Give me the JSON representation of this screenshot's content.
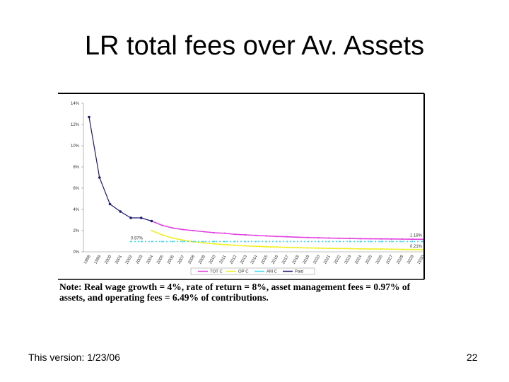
{
  "slide": {
    "title": "LR total fees over Av. Assets",
    "footer_left": "This version: 1/23/06",
    "page_number": "22"
  },
  "chart_data": {
    "type": "line",
    "categories": [
      "1998",
      "1999",
      "2000",
      "2001",
      "2002",
      "2003",
      "2004",
      "2005",
      "2006",
      "2007",
      "2008",
      "2009",
      "2010",
      "2011",
      "2012",
      "2013",
      "2014",
      "2015",
      "2016",
      "2017",
      "2018",
      "2019",
      "2020",
      "2021",
      "2022",
      "2023",
      "2024",
      "2025",
      "2026",
      "2027",
      "2028",
      "2029",
      "2030"
    ],
    "series": [
      {
        "name": "TOT C",
        "color": "#e040e0",
        "values": [
          null,
          null,
          null,
          null,
          null,
          null,
          2.9,
          2.5,
          2.25,
          2.1,
          2.0,
          1.9,
          1.8,
          1.75,
          1.65,
          1.6,
          1.55,
          1.5,
          1.45,
          1.42,
          1.38,
          1.35,
          1.32,
          1.3,
          1.28,
          1.26,
          1.24,
          1.23,
          1.22,
          1.21,
          1.2,
          1.19,
          1.18
        ]
      },
      {
        "name": "OP C",
        "color": "#f0f020",
        "values": [
          null,
          null,
          null,
          null,
          null,
          null,
          2.0,
          1.6,
          1.3,
          1.1,
          0.95,
          0.85,
          0.75,
          0.68,
          0.62,
          0.56,
          0.52,
          0.48,
          0.45,
          0.42,
          0.39,
          0.37,
          0.35,
          0.33,
          0.31,
          0.3,
          0.28,
          0.27,
          0.26,
          0.25,
          0.23,
          0.22,
          0.21
        ]
      },
      {
        "name": "AM C",
        "color": "#40d8f0",
        "values": [
          null,
          null,
          null,
          null,
          0.97,
          0.97,
          0.97,
          0.97,
          0.97,
          0.97,
          0.97,
          0.97,
          0.97,
          0.97,
          0.97,
          0.97,
          0.97,
          0.97,
          0.97,
          0.97,
          0.97,
          0.97,
          0.97,
          0.97,
          0.97,
          0.97,
          0.97,
          0.97,
          0.97,
          0.97,
          0.97,
          0.97,
          0.97
        ]
      },
      {
        "name": "Paid",
        "color": "#1a1a70",
        "values": [
          12.7,
          7.0,
          4.5,
          3.8,
          3.2,
          3.2,
          2.9,
          null,
          null,
          null,
          null,
          null,
          null,
          null,
          null,
          null,
          null,
          null,
          null,
          null,
          null,
          null,
          null,
          null,
          null,
          null,
          null,
          null,
          null,
          null,
          null,
          null,
          null
        ]
      }
    ],
    "ylim": [
      0,
      14
    ],
    "yticks": [
      {
        "value": 0,
        "label": "0%"
      },
      {
        "value": 2,
        "label": "2%"
      },
      {
        "value": 4,
        "label": "4%"
      },
      {
        "value": 6,
        "label": "6%"
      },
      {
        "value": 8,
        "label": "8%"
      },
      {
        "value": 10,
        "label": "10%"
      },
      {
        "value": 12,
        "label": "12%"
      },
      {
        "value": 14,
        "label": "14%"
      }
    ],
    "annotations": [
      "0.97%",
      "1.18%",
      "0.21%"
    ],
    "note": "Note: Real wage growth = 4%, rate of return = 8%, asset management fees = 0.97% of assets, and operating fees = 6.49% of contributions.",
    "legend": "bottom",
    "grid": false
  }
}
